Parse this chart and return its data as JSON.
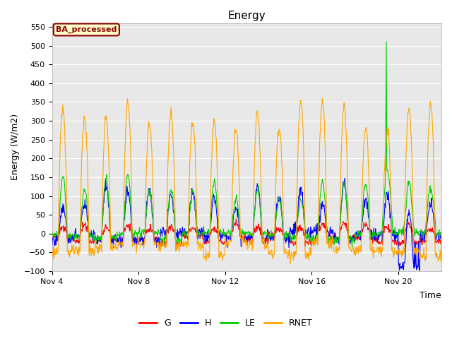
{
  "title": "Energy",
  "xlabel": "Time",
  "ylabel": "Energy (W/m2)",
  "ylim": [
    -100,
    560
  ],
  "yticks": [
    -100,
    -50,
    0,
    50,
    100,
    150,
    200,
    250,
    300,
    350,
    400,
    450,
    500,
    550
  ],
  "xtick_days": [
    4,
    8,
    12,
    16,
    20
  ],
  "xtick_labels": [
    "Nov 4",
    "Nov 8",
    "Nov 12",
    "Nov 16",
    "Nov 20"
  ],
  "colors": {
    "G": "#ff0000",
    "H": "#0000ff",
    "LE": "#00cc00",
    "RNET": "#ffa500"
  },
  "legend_label": "BA_processed",
  "legend_label_color": "#8B0000",
  "legend_bg": "#ffffcc",
  "legend_border": "#8B0000",
  "fig_bg": "#ffffff",
  "plot_bg": "#e8e8e8",
  "grid_color": "#d0d0d0",
  "lw_data": 0.8
}
